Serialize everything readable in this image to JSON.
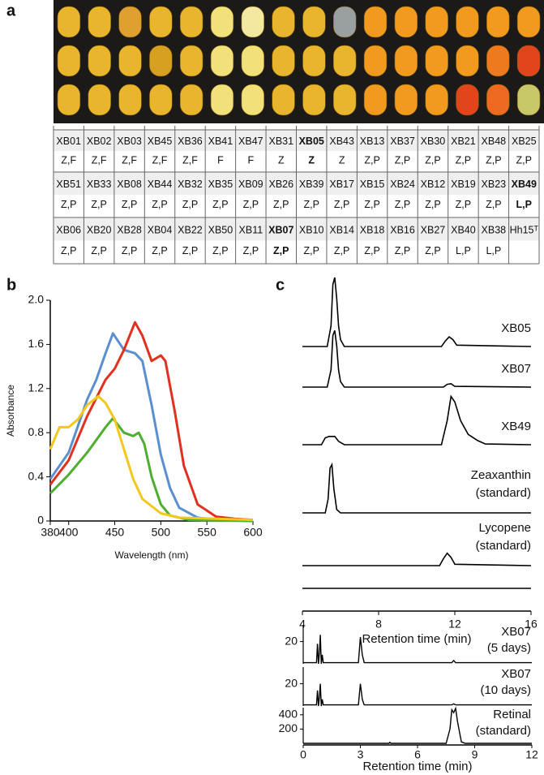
{
  "panel_labels": [
    "a",
    "b",
    "c"
  ],
  "table": {
    "rows": [
      [
        {
          "id": "XB01",
          "type": "Z,F"
        },
        {
          "id": "XB02",
          "type": "Z,F"
        },
        {
          "id": "XB03",
          "type": "Z,F"
        },
        {
          "id": "XB45",
          "type": "Z,F"
        },
        {
          "id": "XB36",
          "type": "Z,F"
        },
        {
          "id": "XB41",
          "type": "F"
        },
        {
          "id": "XB47",
          "type": "F"
        },
        {
          "id": "XB31",
          "type": "Z"
        },
        {
          "id": "XB05",
          "type": "Z",
          "bold": true
        },
        {
          "id": "XB43",
          "type": "Z"
        },
        {
          "id": "XB13",
          "type": "Z,P"
        },
        {
          "id": "XB37",
          "type": "Z,P"
        },
        {
          "id": "XB30",
          "type": "Z,P"
        },
        {
          "id": "XB21",
          "type": "Z,P"
        },
        {
          "id": "XB48",
          "type": "Z,P"
        },
        {
          "id": "XB25",
          "type": "Z,P"
        }
      ],
      [
        {
          "id": "XB51",
          "type": "Z,P"
        },
        {
          "id": "XB33",
          "type": "Z,P"
        },
        {
          "id": "XB08",
          "type": "Z,P"
        },
        {
          "id": "XB44",
          "type": "Z,P"
        },
        {
          "id": "XB32",
          "type": "Z,P"
        },
        {
          "id": "XB35",
          "type": "Z,P"
        },
        {
          "id": "XB09",
          "type": "Z,P"
        },
        {
          "id": "XB26",
          "type": "Z,P"
        },
        {
          "id": "XB39",
          "type": "Z,P"
        },
        {
          "id": "XB17",
          "type": "Z,P"
        },
        {
          "id": "XB15",
          "type": "Z,P"
        },
        {
          "id": "XB24",
          "type": "Z,P"
        },
        {
          "id": "XB12",
          "type": "Z,P"
        },
        {
          "id": "XB19",
          "type": "Z,P"
        },
        {
          "id": "XB23",
          "type": "Z,P"
        },
        {
          "id": "XB49",
          "type": "L,P",
          "bold": true
        }
      ],
      [
        {
          "id": "XB06",
          "type": "Z,P"
        },
        {
          "id": "XB20",
          "type": "Z,P"
        },
        {
          "id": "XB28",
          "type": "Z,P"
        },
        {
          "id": "XB04",
          "type": "Z,P"
        },
        {
          "id": "XB22",
          "type": "Z,P"
        },
        {
          "id": "XB50",
          "type": "Z,P"
        },
        {
          "id": "XB11",
          "type": "Z,P"
        },
        {
          "id": "XB07",
          "type": "Z,P",
          "bold": true
        },
        {
          "id": "XB10",
          "type": "Z,P"
        },
        {
          "id": "XB14",
          "type": "Z,P"
        },
        {
          "id": "XB18",
          "type": "Z,P"
        },
        {
          "id": "XB16",
          "type": "Z,P"
        },
        {
          "id": "XB27",
          "type": "Z,P"
        },
        {
          "id": "XB40",
          "type": "L,P"
        },
        {
          "id": "XB38",
          "type": "L,P"
        },
        {
          "id": "Hh15ᵀ"
        }
      ]
    ]
  },
  "chart_data": [
    {
      "type": "line",
      "xlabel": "Wavelength (nm)",
      "ylabel": "Absorbance",
      "xlim": [
        380,
        600
      ],
      "xticks": [
        380,
        400,
        450,
        500,
        550,
        600
      ],
      "ylim": [
        0,
        2
      ],
      "yticks": [
        0,
        0.4,
        0.8,
        1.2,
        1.6,
        {
          "value": 2,
          "label": "2.0"
        }
      ],
      "series": [
        {
          "color": "#5b8fd0",
          "x": [
            380,
            400,
            420,
            430,
            440,
            448,
            460,
            472,
            480,
            490,
            500,
            510,
            520,
            540,
            560,
            600
          ],
          "values": [
            0.38,
            0.62,
            1.1,
            1.28,
            1.52,
            1.7,
            1.55,
            1.52,
            1.45,
            1.05,
            0.6,
            0.3,
            0.12,
            0.03,
            0.01,
            0
          ]
        },
        {
          "color": "#e03020",
          "x": [
            380,
            400,
            420,
            440,
            450,
            460,
            472,
            480,
            490,
            500,
            505,
            515,
            525,
            540,
            560,
            580,
            600
          ],
          "values": [
            0.33,
            0.55,
            0.95,
            1.28,
            1.38,
            1.55,
            1.8,
            1.68,
            1.45,
            1.5,
            1.45,
            1.0,
            0.5,
            0.15,
            0.04,
            0.02,
            0.01
          ]
        },
        {
          "color": "#4fae30",
          "x": [
            380,
            400,
            420,
            440,
            448,
            460,
            470,
            476,
            482,
            490,
            500,
            510,
            530,
            600
          ],
          "values": [
            0.25,
            0.42,
            0.62,
            0.85,
            0.93,
            0.8,
            0.77,
            0.8,
            0.7,
            0.4,
            0.15,
            0.05,
            0.01,
            0
          ]
        },
        {
          "color": "#f2c81e",
          "x": [
            380,
            390,
            400,
            410,
            420,
            432,
            440,
            450,
            460,
            470,
            480,
            500,
            520,
            600
          ],
          "values": [
            0.65,
            0.85,
            0.85,
            0.92,
            1.05,
            1.13,
            1.07,
            0.92,
            0.65,
            0.38,
            0.2,
            0.07,
            0.03,
            0.01
          ]
        }
      ]
    },
    {
      "type": "line",
      "xlabel": "Retention time (min)",
      "xlim": [
        4,
        16
      ],
      "xticks": [
        4,
        8,
        12,
        16
      ],
      "series": [
        {
          "label": "XB05",
          "bold": false,
          "x": [
            4,
            5.3,
            5.5,
            5.6,
            5.7,
            5.8,
            5.9,
            6.0,
            6.2,
            11.3,
            11.5,
            11.7,
            11.9,
            12.1,
            16
          ],
          "values": [
            0,
            0,
            0.3,
            0.9,
            1.0,
            0.7,
            0.3,
            0.1,
            0,
            0,
            0.08,
            0.14,
            0.1,
            0.02,
            0
          ]
        },
        {
          "label": "XB07",
          "x": [
            4,
            5.3,
            5.5,
            5.6,
            5.7,
            5.8,
            5.9,
            6.0,
            6.2,
            11.4,
            11.6,
            11.8,
            12.0,
            16
          ],
          "values": [
            0,
            0,
            0.25,
            0.75,
            0.82,
            0.6,
            0.25,
            0.08,
            0,
            0,
            0.04,
            0.05,
            0.01,
            0
          ]
        },
        {
          "label": "XB49",
          "x": [
            4,
            5.0,
            5.2,
            5.4,
            5.7,
            5.9,
            6.2,
            11.3,
            11.6,
            11.8,
            12.0,
            12.3,
            12.7,
            13.2,
            13.6,
            16
          ],
          "values": [
            0,
            0,
            0.1,
            0.12,
            0.12,
            0.05,
            0,
            0,
            0.35,
            0.7,
            0.62,
            0.35,
            0.15,
            0.06,
            0.01,
            0
          ]
        },
        {
          "label": "Zeaxanthin",
          "sublabel": "(standard)",
          "x": [
            4,
            5.2,
            5.35,
            5.45,
            5.55,
            5.65,
            5.8,
            6.0,
            16
          ],
          "values": [
            0,
            0,
            0.2,
            0.65,
            0.7,
            0.35,
            0.05,
            0,
            0
          ]
        },
        {
          "label": "Lycopene",
          "sublabel": "(standard)",
          "x": [
            4,
            11.2,
            11.4,
            11.6,
            11.8,
            12.0,
            16
          ],
          "values": [
            0,
            0,
            0.1,
            0.18,
            0.12,
            0.02,
            0
          ]
        }
      ]
    },
    {
      "type": "line",
      "xlabel": "Retention time (min)",
      "xlim": [
        0,
        12
      ],
      "xticks": [
        0,
        3,
        6,
        9,
        12
      ],
      "series": [
        {
          "label": "XB07",
          "sublabel": "(5 days)",
          "ylim": [
            0,
            35
          ],
          "yticks": [
            20
          ],
          "x": [
            0,
            0.7,
            0.75,
            0.8,
            0.85,
            0.9,
            0.95,
            1.0,
            1.05,
            1.1,
            2.9,
            3.0,
            3.1,
            3.2,
            7.8,
            7.9,
            8.0,
            12
          ],
          "values": [
            1,
            1,
            18,
            0,
            10,
            26,
            0,
            8,
            1,
            1,
            1,
            24,
            8,
            1,
            1,
            3,
            1,
            1
          ]
        },
        {
          "label": "XB07",
          "sublabel": "(10 days)",
          "ylim": [
            0,
            35
          ],
          "yticks": [
            20
          ],
          "x": [
            0,
            0.7,
            0.75,
            0.8,
            0.85,
            0.9,
            0.95,
            1.0,
            1.05,
            1.1,
            2.9,
            3.0,
            3.1,
            3.2,
            7.8,
            7.9,
            8.0,
            12
          ],
          "values": [
            1,
            1,
            14,
            0,
            8,
            20,
            0,
            6,
            1,
            1,
            1,
            20,
            6,
            1,
            1,
            2,
            1,
            1
          ]
        },
        {
          "label": "Retinal",
          "sublabel": "(standard)",
          "ylim": [
            0,
            500
          ],
          "yticks": [
            200,
            400
          ],
          "x": [
            0,
            4.5,
            4.55,
            4.6,
            7.5,
            7.7,
            7.8,
            7.9,
            8.0,
            8.1,
            8.3,
            8.5,
            12
          ],
          "values": [
            0,
            0,
            15,
            0,
            0,
            200,
            470,
            430,
            490,
            300,
            20,
            0,
            0
          ]
        }
      ]
    }
  ]
}
